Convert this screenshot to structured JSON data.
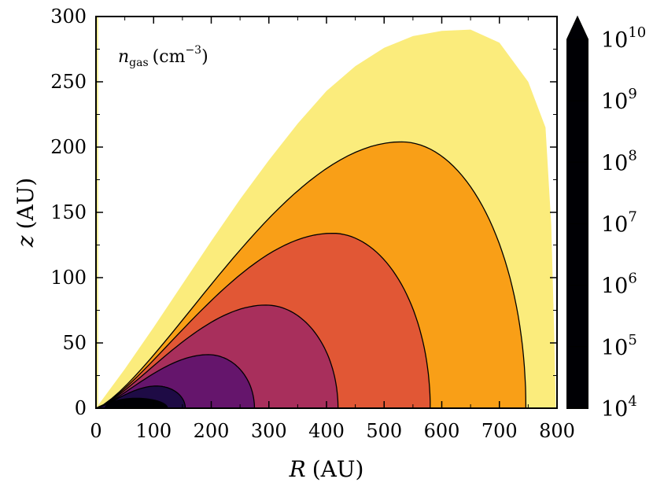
{
  "chart_data": {
    "type": "heatmap",
    "title": "",
    "annotation": "n_gas (cm^-3)",
    "annotation_parts": {
      "var": "n",
      "sub": "gas",
      "unit": "(cm",
      "exp": "−3",
      "close": ")"
    },
    "xlabel": {
      "var": "R",
      "unit": "(AU)"
    },
    "ylabel": {
      "var": "z",
      "unit": "(AU)"
    },
    "xlim": [
      0,
      800
    ],
    "ylim": [
      0,
      300
    ],
    "xticks": [
      0,
      100,
      200,
      300,
      400,
      500,
      600,
      700,
      800
    ],
    "yticks": [
      0,
      50,
      100,
      150,
      200,
      250,
      300
    ],
    "colorscale": "inferno_r",
    "colorbar": {
      "scale": "log",
      "range": [
        10000,
        10000000000
      ],
      "extend": "max",
      "ticks": [
        {
          "base": "10",
          "exp": "4"
        },
        {
          "base": "10",
          "exp": "5"
        },
        {
          "base": "10",
          "exp": "6"
        },
        {
          "base": "10",
          "exp": "7"
        },
        {
          "base": "10",
          "exp": "8"
        },
        {
          "base": "10",
          "exp": "9"
        },
        {
          "base": "10",
          "exp": "10"
        }
      ]
    },
    "density_outer_boundary": {
      "level": 10000,
      "R": [
        0,
        50,
        100,
        150,
        200,
        250,
        300,
        350,
        400,
        450,
        500,
        550,
        600,
        650,
        700,
        750,
        780
      ],
      "z": [
        0,
        30,
        62,
        95,
        128,
        160,
        190,
        218,
        243,
        262,
        276,
        285,
        289,
        290,
        280,
        250,
        215
      ]
    },
    "contours": [
      {
        "level": 100000,
        "peak": {
          "R": 530,
          "z": 204
        },
        "R_max": 746
      },
      {
        "level": 1000000,
        "peak": {
          "R": 410,
          "z": 134
        },
        "R_max": 580
      },
      {
        "level": 10000000,
        "peak": {
          "R": 295,
          "z": 79
        },
        "R_max": 420
      },
      {
        "level": 100000000,
        "peak": {
          "R": 195,
          "z": 41
        },
        "R_max": 275
      },
      {
        "level": 1000000000,
        "peak": {
          "R": 105,
          "z": 17
        },
        "R_max": 155
      }
    ]
  }
}
